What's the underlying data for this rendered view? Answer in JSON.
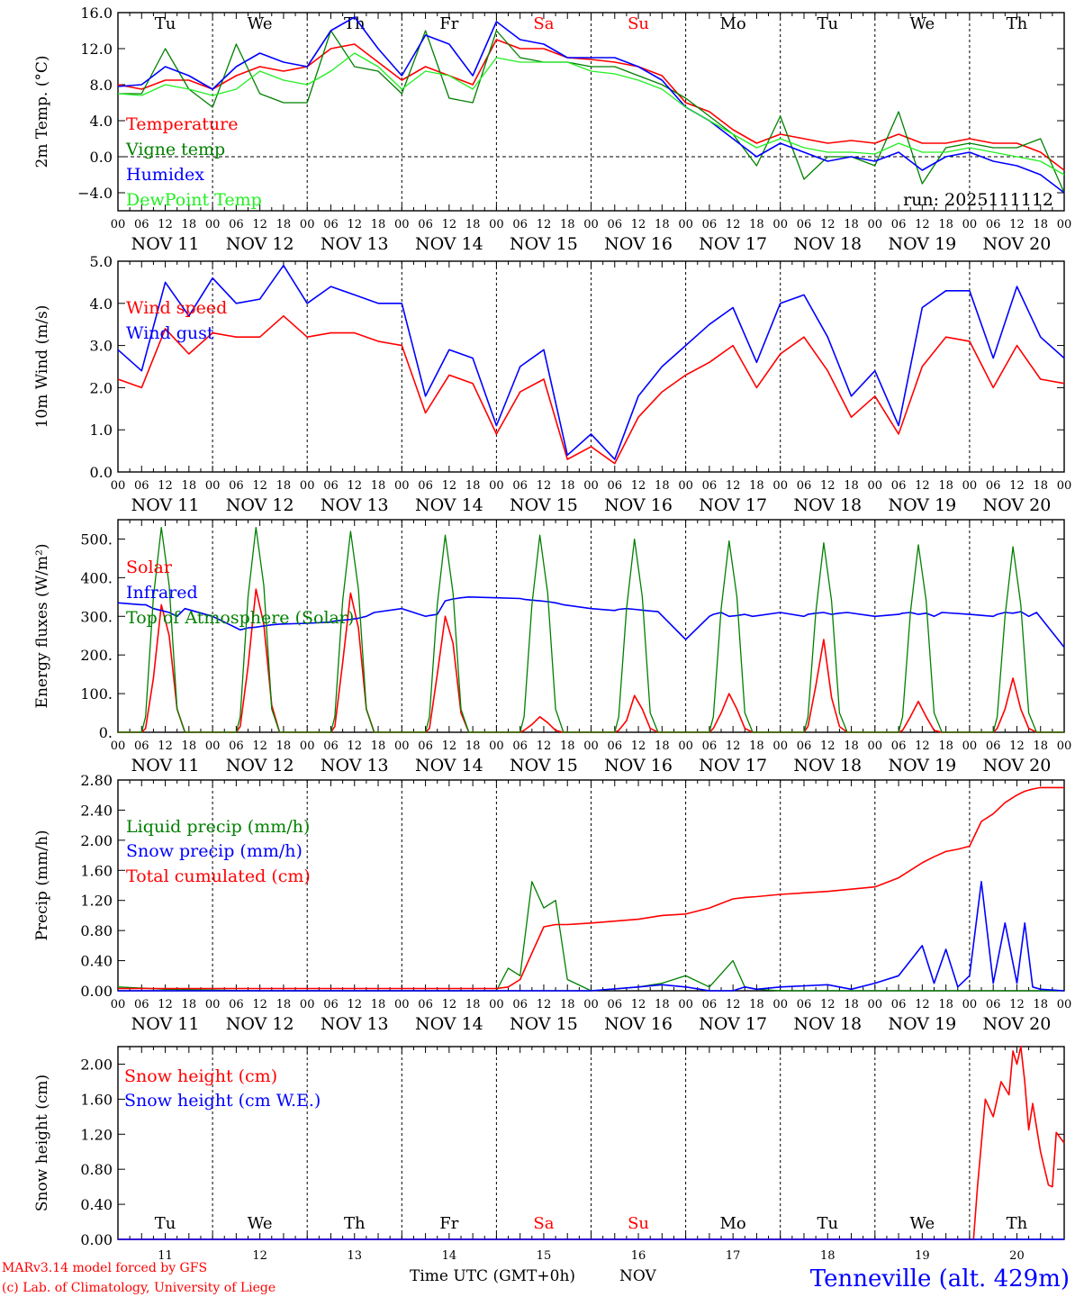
{
  "colors": {
    "red": "#ff0000",
    "green": "#008000",
    "blue": "#0000ff",
    "lightgreen": "#22ee22",
    "black": "#000000"
  },
  "run_label": "run: 2025111112",
  "footer": {
    "model_line": "MARv3.14 model forced by GFS",
    "credit_line": "(c) Lab. of Climatology, University of Liege",
    "xlabel": "Time UTC (GMT+0h)",
    "month": "NOV",
    "station": "Tenneville (alt. 429m)"
  },
  "time_axis": {
    "hour_ticks": [
      "00",
      "06",
      "12",
      "18"
    ],
    "final_tick": "00",
    "date_labels": [
      "NOV 11",
      "NOV 12",
      "NOV 13",
      "NOV 14",
      "NOV 15",
      "NOV 16",
      "NOV 17",
      "NOV 18",
      "NOV 19",
      "NOV 20"
    ],
    "day_names": [
      "Tu",
      "We",
      "Th",
      "Fr",
      "Sa",
      "Su",
      "Mo",
      "Tu",
      "We",
      "Th"
    ],
    "weekend_flags": [
      false,
      false,
      false,
      false,
      true,
      true,
      false,
      false,
      false,
      false
    ],
    "day_numbers": [
      "11",
      "12",
      "13",
      "14",
      "15",
      "16",
      "17",
      "18",
      "19",
      "20"
    ]
  },
  "chart_data": [
    {
      "id": "temperature",
      "type": "line",
      "ylabel": "2m Temp. (°C)",
      "ylim": [
        -6,
        16
      ],
      "yticks": [
        -4,
        0,
        4,
        8,
        12,
        16
      ],
      "ytick_labels": [
        "−4.0",
        "0.0",
        "4.0",
        "8.0",
        "12.0",
        "16.0"
      ],
      "zero_line": true,
      "x_unit": "hours from NOV 11 00 UTC",
      "x": [
        0,
        6,
        12,
        18,
        24,
        30,
        36,
        42,
        48,
        54,
        60,
        66,
        72,
        78,
        84,
        90,
        96,
        102,
        108,
        114,
        120,
        126,
        132,
        138,
        144,
        150,
        156,
        162,
        168,
        174,
        180,
        186,
        192,
        198,
        204,
        210,
        216,
        222,
        228,
        234,
        240
      ],
      "series": [
        {
          "name": "Temperature",
          "color": "red",
          "values": [
            8,
            7.5,
            8.5,
            8.5,
            7.5,
            9,
            10,
            9.5,
            10,
            12,
            12.5,
            10.5,
            8.5,
            10,
            9,
            8,
            13,
            12,
            12,
            11,
            10.8,
            10.5,
            10,
            9,
            6,
            5,
            3,
            1.5,
            2.5,
            2,
            1.5,
            1.8,
            1.5,
            2.5,
            1.5,
            1.5,
            2,
            1.5,
            1.5,
            0.5,
            -1.5
          ]
        },
        {
          "name": "Vigne temp",
          "color": "green",
          "values": [
            7,
            7,
            12,
            7.5,
            5.5,
            12.5,
            7,
            6,
            6,
            14,
            10,
            9.5,
            7,
            14,
            6.5,
            6,
            14,
            11,
            10.5,
            10.5,
            10,
            10,
            9,
            8,
            6.5,
            4.5,
            2.5,
            -1,
            4.5,
            -2.5,
            0,
            0,
            -1,
            5,
            -3,
            1,
            1.5,
            1,
            1,
            2,
            -4
          ]
        },
        {
          "name": "Humidex",
          "color": "blue",
          "values": [
            7.8,
            8,
            10,
            9,
            7.5,
            10,
            11.5,
            10.5,
            10,
            14,
            15.5,
            12,
            9,
            13.5,
            12.5,
            9,
            15,
            13,
            12.5,
            11,
            11,
            11,
            10,
            8.5,
            5.5,
            4,
            2,
            0,
            1.5,
            0.5,
            -0.5,
            0,
            -0.5,
            0.5,
            -1.5,
            0,
            0.5,
            -0.5,
            -1,
            -2,
            -4
          ]
        },
        {
          "name": "DewPoint Temp",
          "color": "lightgreen",
          "values": [
            7,
            6.8,
            8,
            7.5,
            6.8,
            7.5,
            9.5,
            8.5,
            8,
            9.5,
            11.5,
            10,
            7.5,
            9.5,
            9,
            7.5,
            11,
            10.5,
            10.5,
            10.5,
            9.5,
            9.2,
            8.5,
            7.5,
            5.5,
            4,
            2.5,
            1,
            2,
            1,
            0.5,
            0.5,
            0.3,
            1.5,
            0.5,
            0.5,
            1,
            0.5,
            0,
            -0.5,
            -2
          ]
        }
      ]
    },
    {
      "id": "wind",
      "type": "line",
      "ylabel": "10m Wind (m/s)",
      "ylim": [
        0,
        5
      ],
      "yticks": [
        0,
        1,
        2,
        3,
        4,
        5
      ],
      "ytick_labels": [
        "0.0",
        "1.0",
        "2.0",
        "3.0",
        "4.0",
        "5.0"
      ],
      "x_unit": "hours from NOV 11 00 UTC",
      "x": [
        0,
        6,
        12,
        18,
        24,
        30,
        36,
        42,
        48,
        54,
        60,
        66,
        72,
        78,
        84,
        90,
        96,
        102,
        108,
        114,
        120,
        126,
        132,
        138,
        144,
        150,
        156,
        162,
        168,
        174,
        180,
        186,
        192,
        198,
        204,
        210,
        216,
        222,
        228,
        234,
        240
      ],
      "series": [
        {
          "name": "Wind speed",
          "color": "red",
          "values": [
            2.2,
            2,
            3.4,
            2.8,
            3.3,
            3.2,
            3.2,
            3.7,
            3.2,
            3.3,
            3.3,
            3.1,
            3.0,
            1.4,
            2.3,
            2.1,
            0.9,
            1.9,
            2.2,
            0.3,
            0.6,
            0.2,
            1.3,
            1.9,
            2.3,
            2.6,
            3.0,
            2.0,
            2.8,
            3.2,
            2.4,
            1.3,
            1.8,
            0.9,
            2.5,
            3.2,
            3.1,
            2.0,
            3.0,
            2.2,
            2.1
          ]
        },
        {
          "name": "Wind gust",
          "color": "blue",
          "values": [
            2.9,
            2.4,
            4.5,
            3.7,
            4.6,
            4.0,
            4.1,
            4.9,
            4.0,
            4.4,
            4.2,
            4.0,
            4.0,
            1.8,
            2.9,
            2.7,
            1.1,
            2.5,
            2.9,
            0.4,
            0.9,
            0.3,
            1.8,
            2.5,
            3.0,
            3.5,
            3.9,
            2.6,
            4.0,
            4.2,
            3.2,
            1.8,
            2.4,
            1.1,
            3.9,
            4.3,
            4.3,
            2.7,
            4.4,
            3.2,
            2.7
          ]
        }
      ]
    },
    {
      "id": "energy",
      "type": "line",
      "ylabel": "Energy fluxes (W/m²)",
      "ylim": [
        0,
        550
      ],
      "yticks": [
        0,
        100,
        200,
        300,
        400,
        500
      ],
      "ytick_labels": [
        "0.",
        "100.",
        "200.",
        "300.",
        "400.",
        "500."
      ],
      "x_unit": "hours from NOV 11 00 UTC",
      "x": [
        0,
        6,
        7,
        9,
        11,
        13,
        15,
        17,
        24,
        30,
        31,
        33,
        35,
        37,
        39,
        41,
        48,
        54,
        55,
        57,
        59,
        61,
        63,
        65,
        72,
        78,
        79,
        81,
        83,
        85,
        87,
        89,
        96,
        102,
        103,
        105,
        107,
        109,
        111,
        113,
        120,
        126,
        127,
        129,
        131,
        133,
        135,
        137,
        144,
        150,
        151,
        153,
        155,
        157,
        159,
        161,
        168,
        174,
        175,
        177,
        179,
        181,
        183,
        185,
        192,
        198,
        199,
        201,
        203,
        205,
        207,
        209,
        216,
        222,
        223,
        225,
        227,
        229,
        231,
        233,
        240
      ],
      "series": [
        {
          "name": "Solar",
          "color": "red",
          "values": [
            0,
            0,
            10,
            140,
            330,
            250,
            60,
            0,
            0,
            0,
            15,
            170,
            370,
            280,
            70,
            0,
            0,
            0,
            15,
            180,
            360,
            270,
            60,
            0,
            0,
            0,
            10,
            150,
            300,
            230,
            50,
            0,
            0,
            0,
            5,
            20,
            40,
            25,
            5,
            0,
            0,
            0,
            5,
            30,
            95,
            60,
            10,
            0,
            0,
            0,
            10,
            50,
            100,
            60,
            10,
            0,
            0,
            0,
            15,
            120,
            240,
            90,
            15,
            0,
            0,
            0,
            5,
            40,
            80,
            40,
            5,
            0,
            0,
            0,
            10,
            60,
            140,
            60,
            10,
            0,
            0
          ]
        },
        {
          "name": "Infrared",
          "color": "blue",
          "values": [
            335,
            330,
            330,
            320,
            315,
            310,
            300,
            320,
            300,
            270,
            265,
            270,
            272,
            275,
            278,
            280,
            282,
            285,
            288,
            290,
            292,
            295,
            300,
            310,
            320,
            300,
            302,
            305,
            340,
            345,
            348,
            350,
            348,
            346,
            344,
            342,
            340,
            338,
            335,
            330,
            320,
            315,
            318,
            320,
            318,
            316,
            314,
            312,
            240,
            300,
            305,
            310,
            300,
            302,
            305,
            300,
            310,
            300,
            305,
            308,
            310,
            305,
            308,
            310,
            300,
            305,
            308,
            310,
            305,
            308,
            300,
            310,
            305,
            300,
            305,
            310,
            308,
            312,
            300,
            310,
            220
          ]
        },
        {
          "name": "Top of Atmosphere (Solar)",
          "color": "green",
          "values": [
            0,
            0,
            40,
            350,
            530,
            380,
            60,
            0,
            0,
            0,
            40,
            350,
            530,
            380,
            60,
            0,
            0,
            0,
            40,
            340,
            520,
            370,
            60,
            0,
            0,
            0,
            40,
            330,
            510,
            360,
            60,
            0,
            0,
            0,
            40,
            330,
            510,
            360,
            60,
            0,
            0,
            0,
            40,
            320,
            500,
            350,
            50,
            0,
            0,
            0,
            40,
            320,
            495,
            350,
            50,
            0,
            0,
            0,
            40,
            310,
            490,
            340,
            50,
            0,
            0,
            0,
            40,
            310,
            485,
            340,
            50,
            0,
            0,
            0,
            40,
            300,
            480,
            330,
            50,
            0,
            0
          ]
        }
      ]
    },
    {
      "id": "precip",
      "type": "line",
      "ylabel": "Precip (mm/h)",
      "ylim": [
        0,
        2.8
      ],
      "yticks": [
        0,
        0.4,
        0.8,
        1.2,
        1.6,
        2.0,
        2.4,
        2.8
      ],
      "ytick_labels": [
        "0.00",
        "0.40",
        "0.80",
        "1.20",
        "1.60",
        "2.00",
        "2.40",
        "2.80"
      ],
      "x_unit": "hours from NOV 11 00 UTC",
      "x": [
        0,
        12,
        24,
        36,
        48,
        60,
        72,
        84,
        96,
        99,
        102,
        105,
        108,
        111,
        114,
        120,
        132,
        138,
        144,
        150,
        156,
        159,
        162,
        168,
        180,
        186,
        192,
        198,
        204,
        207,
        210,
        213,
        216,
        219,
        222,
        225,
        228,
        230,
        232,
        234,
        240
      ],
      "series": [
        {
          "name": "Liquid precip (mm/h)",
          "color": "green",
          "values": [
            0.05,
            0.02,
            0.01,
            0,
            0,
            0,
            0,
            0,
            0,
            0.3,
            0.2,
            1.45,
            1.1,
            1.2,
            0.15,
            0,
            0.05,
            0.1,
            0.2,
            0.05,
            0.4,
            0.05,
            0.02,
            0,
            0,
            0,
            0,
            0,
            0,
            0,
            0,
            0,
            0,
            0,
            0,
            0,
            0,
            0,
            0,
            0,
            0
          ]
        },
        {
          "name": "Snow precip (mm/h)",
          "color": "blue",
          "values": [
            0,
            0,
            0,
            0,
            0,
            0,
            0,
            0,
            0,
            0,
            0,
            0,
            0,
            0,
            0,
            0,
            0.05,
            0.08,
            0.05,
            0,
            0,
            0.05,
            0.02,
            0.05,
            0.08,
            0.02,
            0.1,
            0.2,
            0.6,
            0.1,
            0.55,
            0.05,
            0.2,
            1.45,
            0.1,
            0.9,
            0.1,
            0.9,
            0.05,
            0.02,
            0
          ]
        },
        {
          "name": "Total cumulated (cm)",
          "color": "red",
          "values": [
            0.03,
            0.03,
            0.03,
            0.03,
            0.03,
            0.03,
            0.03,
            0.03,
            0.03,
            0.05,
            0.15,
            0.5,
            0.85,
            0.88,
            0.88,
            0.9,
            0.95,
            1.0,
            1.02,
            1.1,
            1.22,
            1.24,
            1.25,
            1.28,
            1.32,
            1.35,
            1.38,
            1.5,
            1.7,
            1.78,
            1.85,
            1.88,
            1.92,
            2.25,
            2.35,
            2.5,
            2.6,
            2.65,
            2.68,
            2.7,
            2.7
          ]
        }
      ]
    },
    {
      "id": "snow",
      "type": "line",
      "ylabel": "Snow height (cm)",
      "ylim": [
        0,
        2.2
      ],
      "yticks": [
        0,
        0.4,
        0.8,
        1.2,
        1.6,
        2.0
      ],
      "ytick_labels": [
        "0.00",
        "0.40",
        "0.80",
        "1.20",
        "1.60",
        "2.00"
      ],
      "x_unit": "hours from NOV 11 00 UTC",
      "x": [
        0,
        48,
        96,
        144,
        192,
        217,
        218,
        220,
        222,
        224,
        226,
        227,
        228,
        229,
        230,
        231,
        232,
        234,
        236,
        237,
        238,
        240
      ],
      "series": [
        {
          "name": "Snow height (cm)",
          "color": "red",
          "values": [
            0,
            0,
            0,
            0,
            0,
            0,
            0.6,
            1.6,
            1.4,
            1.8,
            1.65,
            2.15,
            2.0,
            2.2,
            1.8,
            1.25,
            1.55,
            1.0,
            0.62,
            0.6,
            1.22,
            1.1
          ]
        },
        {
          "name": "Snow height (cm W.E.)",
          "color": "blue",
          "values": [
            0,
            0,
            0,
            0,
            0,
            0,
            0,
            0,
            0,
            0,
            0,
            0,
            0,
            0,
            0,
            0,
            0,
            0,
            0,
            0,
            0,
            0
          ]
        }
      ]
    }
  ]
}
